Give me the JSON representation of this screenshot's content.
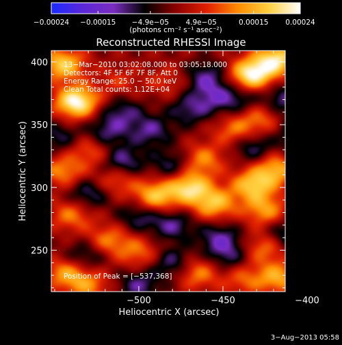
{
  "chart_data": {
    "type": "heatmap",
    "title": "Reconstructed RHESSI Image",
    "xlabel": "Heliocentric X (arcsec)",
    "ylabel": "Heliocentric Y (arcsec)",
    "xlim": [
      -552,
      -413
    ],
    "ylim": [
      217,
      409
    ],
    "x_ticks": [
      -500,
      -450,
      -400
    ],
    "y_ticks": [
      250,
      300,
      350,
      400
    ],
    "x_tick_labels": [
      "−500",
      "−450",
      "−400"
    ],
    "y_tick_labels": [
      "250",
      "300",
      "350",
      "400"
    ],
    "colorbar": {
      "range": [
        -0.00024,
        0.00024
      ],
      "ticks": [
        -0.00024,
        -0.00015,
        -4.9e-05,
        4.9e-05,
        0.00015,
        0.00024
      ],
      "tick_labels": [
        "−0.00024",
        "−0.00015",
        "−4.9e−05",
        "4.9e−05",
        "0.00015",
        "0.00024"
      ],
      "unit_label": "(photons cm⁻² s⁻¹ asec⁻²)",
      "colors": [
        "#1a2aff",
        "#5a28d8",
        "#7a2cc0",
        "#000000",
        "#8b0000",
        "#e02000",
        "#ff8c00",
        "#ffd040",
        "#ffffff"
      ]
    },
    "annotations": [
      "13−Mar−2010 03:02:08.000 to 03:05:18.000",
      "Detectors: 4F 5F 6F 7F 8F, Att 0",
      "Energy Range: 25.0 − 50.0 keV",
      "Clean     Total counts: 1.12E+04"
    ],
    "peak_label": "Position of Peak = [−537,368]",
    "peak": [
      -537,
      368
    ],
    "sources": [
      {
        "x": -537,
        "y": 368,
        "value": 0.00024
      },
      {
        "x": -545,
        "y": 398,
        "value": 0.00018
      },
      {
        "x": -433,
        "y": 390,
        "value": 0.00023
      },
      {
        "x": -418,
        "y": 402,
        "value": 0.0002
      },
      {
        "x": -470,
        "y": 300,
        "value": 0.00019
      },
      {
        "x": -490,
        "y": 293,
        "value": 0.00017
      },
      {
        "x": -455,
        "y": 287,
        "value": 0.00016
      },
      {
        "x": -432,
        "y": 302,
        "value": 0.00017
      },
      {
        "x": -418,
        "y": 315,
        "value": 0.00015
      },
      {
        "x": -462,
        "y": 322,
        "value": 0.00012
      },
      {
        "x": -425,
        "y": 282,
        "value": 0.00013
      },
      {
        "x": -545,
        "y": 313,
        "value": 0.00012
      },
      {
        "x": -540,
        "y": 278,
        "value": 0.00011
      },
      {
        "x": -528,
        "y": 330,
        "value": 0.0001
      },
      {
        "x": -513,
        "y": 306,
        "value": 0.0001
      },
      {
        "x": -518,
        "y": 258,
        "value": 0.00011
      },
      {
        "x": -500,
        "y": 248,
        "value": 0.0001
      },
      {
        "x": -443,
        "y": 345,
        "value": 0.0001
      },
      {
        "x": -428,
        "y": 355,
        "value": 0.0001
      },
      {
        "x": -425,
        "y": 252,
        "value": 0.00011
      },
      {
        "x": -465,
        "y": 232,
        "value": 0.00012
      },
      {
        "x": -438,
        "y": 227,
        "value": 9e-05
      },
      {
        "x": -543,
        "y": 232,
        "value": 0.00013
      },
      {
        "x": -530,
        "y": 222,
        "value": 0.00011
      },
      {
        "x": -417,
        "y": 228,
        "value": 0.00014
      },
      {
        "x": -512,
        "y": 384,
        "value": 6e-05
      },
      {
        "x": -483,
        "y": 384,
        "value": 6e-05
      },
      {
        "x": -470,
        "y": 362,
        "value": -9e-05
      },
      {
        "x": -493,
        "y": 345,
        "value": -0.0001
      },
      {
        "x": -510,
        "y": 360,
        "value": -9e-05
      },
      {
        "x": -460,
        "y": 388,
        "value": -0.0001
      },
      {
        "x": -520,
        "y": 343,
        "value": -0.0001
      },
      {
        "x": -510,
        "y": 320,
        "value": -0.00012
      },
      {
        "x": -480,
        "y": 318,
        "value": -9e-05
      },
      {
        "x": -432,
        "y": 332,
        "value": -0.0001
      },
      {
        "x": -414,
        "y": 370,
        "value": -0.0001
      },
      {
        "x": -530,
        "y": 295,
        "value": -0.0001
      },
      {
        "x": -480,
        "y": 270,
        "value": -0.0001
      },
      {
        "x": -500,
        "y": 277,
        "value": -9e-05
      },
      {
        "x": -452,
        "y": 260,
        "value": -0.0001
      },
      {
        "x": -413,
        "y": 262,
        "value": -0.0001
      },
      {
        "x": -532,
        "y": 245,
        "value": -9e-05
      },
      {
        "x": -480,
        "y": 240,
        "value": -0.0001
      },
      {
        "x": -447,
        "y": 245,
        "value": -9e-05
      },
      {
        "x": -500,
        "y": 222,
        "value": -0.0001
      },
      {
        "x": -548,
        "y": 340,
        "value": -8e-05
      },
      {
        "x": -400,
        "y": 330,
        "value": -9e-05
      },
      {
        "x": -455,
        "y": 372,
        "value": -8e-05
      },
      {
        "x": -440,
        "y": 370,
        "value": -8e-05
      },
      {
        "x": -405,
        "y": 345,
        "value": -8e-05
      }
    ]
  },
  "timestamp": "3−Aug−2013 05:58"
}
